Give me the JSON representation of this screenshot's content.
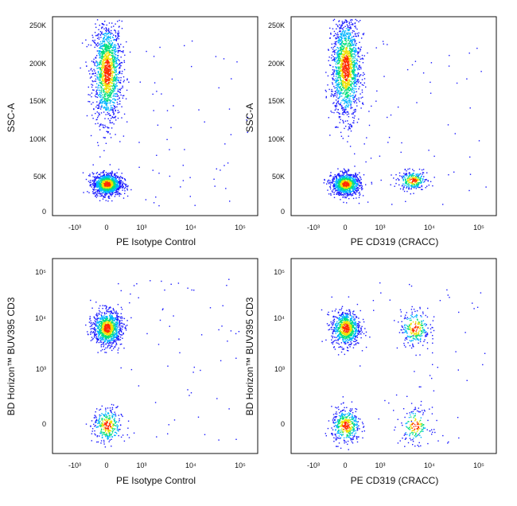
{
  "figure": {
    "panels": [
      {
        "xlabel": "PE  Isotype Control",
        "ylabel": "SSC-A",
        "xticks": [
          "-10³",
          "0",
          "10³",
          "10⁴",
          "10⁵"
        ],
        "yticks": [
          "0",
          "50K",
          "100K",
          "150K",
          "200K",
          "250K"
        ]
      },
      {
        "xlabel": "PE  CD319 (CRACC)",
        "ylabel": "SSC-A",
        "xticks": [
          "-10³",
          "0",
          "10³",
          "10⁴",
          "10⁵"
        ],
        "yticks": [
          "0",
          "50K",
          "100K",
          "150K",
          "200K",
          "250K"
        ]
      },
      {
        "xlabel": "PE  Isotype Control",
        "ylabel": "BD Horizon™ BUV395  CD3",
        "xticks": [
          "-10³",
          "0",
          "10³",
          "10⁴",
          "10⁵"
        ],
        "yticks": [
          "0",
          "10³",
          "10⁴",
          "10⁵"
        ]
      },
      {
        "xlabel": "PE  CD319 (CRACC)",
        "ylabel": "BD Horizon™ BUV395  CD3",
        "xticks": [
          "-10³",
          "0",
          "10³",
          "10⁴",
          "10⁵"
        ],
        "yticks": [
          "0",
          "10³",
          "10⁴",
          "10⁵"
        ]
      }
    ]
  },
  "chart_data": [
    {
      "type": "scatter",
      "xlabel": "PE  Isotype Control",
      "ylabel": "SSC-A",
      "x_scale": "biexponential",
      "y_scale": "linear",
      "ylim": [
        0,
        262144
      ],
      "x_ticks": [
        "-10³",
        "0",
        "10³",
        "10⁴",
        "10⁵"
      ],
      "y_ticks": [
        "0",
        "50K",
        "100K",
        "150K",
        "200K",
        "250K"
      ],
      "density_colors": [
        "#1a1aff",
        "#00b3ff",
        "#00e07a",
        "#f0e000",
        "#ff2a00"
      ],
      "populations": [
        {
          "x_center": 0,
          "y_center": 190000,
          "y_spread": 55000,
          "relative_density": 0.55
        },
        {
          "x_center": 0,
          "y_center": 42000,
          "y_spread": 12000,
          "relative_density": 0.45
        }
      ]
    },
    {
      "type": "scatter",
      "xlabel": "PE  CD319 (CRACC)",
      "ylabel": "SSC-A",
      "x_scale": "biexponential",
      "y_scale": "linear",
      "ylim": [
        0,
        262144
      ],
      "x_ticks": [
        "-10³",
        "0",
        "10³",
        "10⁴",
        "10⁵"
      ],
      "y_ticks": [
        "0",
        "50K",
        "100K",
        "150K",
        "200K",
        "250K"
      ],
      "density_colors": [
        "#1a1aff",
        "#00b3ff",
        "#00e07a",
        "#f0e000",
        "#ff2a00"
      ],
      "populations": [
        {
          "x_center": 0,
          "y_center": 195000,
          "y_spread": 55000,
          "relative_density": 0.55
        },
        {
          "x_center": 0,
          "y_center": 42000,
          "y_spread": 12000,
          "relative_density": 0.35
        },
        {
          "x_center": 4500,
          "y_center": 47000,
          "y_spread": 10000,
          "relative_density": 0.1
        }
      ]
    },
    {
      "type": "scatter",
      "xlabel": "PE  Isotype Control",
      "ylabel": "BD Horizon™ BUV395  CD3",
      "x_scale": "biexponential",
      "y_scale": "biexponential",
      "x_ticks": [
        "-10³",
        "0",
        "10³",
        "10⁴",
        "10⁵"
      ],
      "y_ticks": [
        "0",
        "10³",
        "10⁴",
        "10⁵"
      ],
      "density_colors": [
        "#1a1aff",
        "#00b3ff",
        "#00e07a",
        "#f0e000",
        "#ff2a00"
      ],
      "populations": [
        {
          "x_center": 0,
          "y_center": 10000,
          "relative_density": 0.75
        },
        {
          "x_center": 0,
          "y_center": 0,
          "relative_density": 0.25
        }
      ]
    },
    {
      "type": "scatter",
      "xlabel": "PE  CD319 (CRACC)",
      "ylabel": "BD Horizon™ BUV395  CD3",
      "x_scale": "biexponential",
      "y_scale": "biexponential",
      "x_ticks": [
        "-10³",
        "0",
        "10³",
        "10⁴",
        "10⁵"
      ],
      "y_ticks": [
        "0",
        "10³",
        "10⁴",
        "10⁵"
      ],
      "density_colors": [
        "#1a1aff",
        "#00b3ff",
        "#00e07a",
        "#f0e000",
        "#ff2a00"
      ],
      "populations": [
        {
          "x_center": 0,
          "y_center": 10000,
          "relative_density": 0.45
        },
        {
          "x_center": 5000,
          "y_center": 10000,
          "relative_density": 0.15
        },
        {
          "x_center": 0,
          "y_center": 0,
          "relative_density": 0.25
        },
        {
          "x_center": 5000,
          "y_center": 0,
          "relative_density": 0.1
        }
      ]
    }
  ]
}
